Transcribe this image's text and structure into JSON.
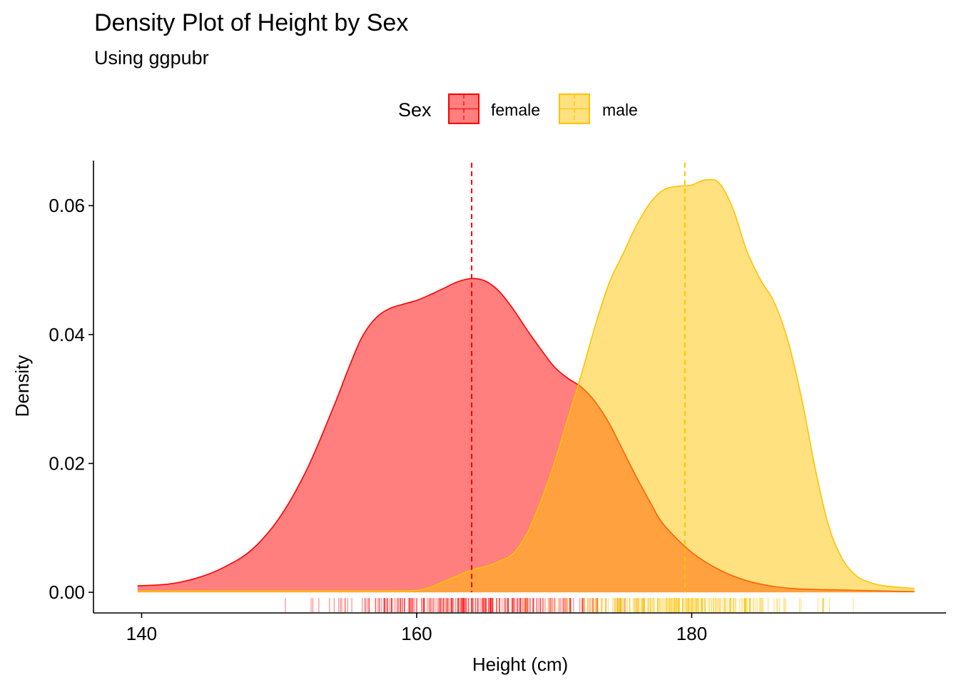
{
  "chart_data": {
    "type": "area",
    "title": "Density Plot of Height by Sex",
    "subtitle": "Using ggpubr",
    "xlabel": "Height (cm)",
    "ylabel": "Density",
    "xlim": [
      136.5,
      198.5
    ],
    "ylim": [
      -0.0032,
      0.067
    ],
    "x_ticks": [
      140,
      160,
      180
    ],
    "x_tick_labels": [
      "140",
      "160",
      "180"
    ],
    "y_ticks": [
      0,
      0.02,
      0.04,
      0.06
    ],
    "y_tick_labels": [
      "0.00",
      "0.02",
      "0.04",
      "0.06"
    ],
    "grid": false,
    "legend": {
      "title": "Sex",
      "position": "top"
    },
    "rug": true,
    "series": [
      {
        "name": "female",
        "color": "#FF0000",
        "fill": "#FF0000",
        "fill_opacity": 0.5,
        "mean": 164,
        "x": [
          139.7,
          142,
          144,
          146,
          148,
          150,
          152,
          154,
          155,
          156,
          157,
          158,
          159,
          160,
          161,
          162,
          163,
          164,
          165,
          166,
          167,
          168,
          169,
          170,
          171,
          172,
          173,
          174,
          175,
          176,
          177,
          178,
          180,
          182,
          184,
          186,
          188,
          190,
          192,
          194,
          196.2
        ],
        "y": [
          0.001,
          0.0013,
          0.0022,
          0.0039,
          0.0066,
          0.0115,
          0.019,
          0.029,
          0.0345,
          0.0395,
          0.0425,
          0.044,
          0.0447,
          0.0453,
          0.0462,
          0.0472,
          0.0482,
          0.0487,
          0.0483,
          0.0467,
          0.044,
          0.0408,
          0.0378,
          0.035,
          0.0332,
          0.0318,
          0.0295,
          0.0262,
          0.022,
          0.0178,
          0.0139,
          0.0104,
          0.0062,
          0.0035,
          0.0018,
          0.0009,
          0.0005,
          0.0004,
          0.0003,
          0.0002,
          0.0001
        ]
      },
      {
        "name": "male",
        "color": "#FFC300",
        "fill": "#FFC300",
        "fill_opacity": 0.5,
        "mean": 179.5,
        "x": [
          139.7,
          150,
          155,
          158,
          160,
          161,
          162,
          163,
          164,
          165,
          166,
          167,
          168,
          169,
          170,
          171,
          172,
          173,
          174,
          175,
          176,
          177,
          178,
          179,
          180,
          181,
          182,
          183,
          184,
          185,
          186,
          187,
          188,
          189,
          190,
          191,
          192,
          193,
          194,
          195,
          196.2
        ],
        "y": [
          0.0002,
          0.0002,
          0.0002,
          0.0002,
          0.0003,
          0.0008,
          0.0017,
          0.0026,
          0.0035,
          0.004,
          0.0048,
          0.006,
          0.009,
          0.014,
          0.02,
          0.027,
          0.034,
          0.0415,
          0.048,
          0.0525,
          0.057,
          0.0605,
          0.0625,
          0.063,
          0.0632,
          0.064,
          0.0635,
          0.0595,
          0.053,
          0.0485,
          0.045,
          0.039,
          0.03,
          0.019,
          0.01,
          0.005,
          0.0025,
          0.0015,
          0.001,
          0.0008,
          0.0006
        ]
      }
    ]
  }
}
